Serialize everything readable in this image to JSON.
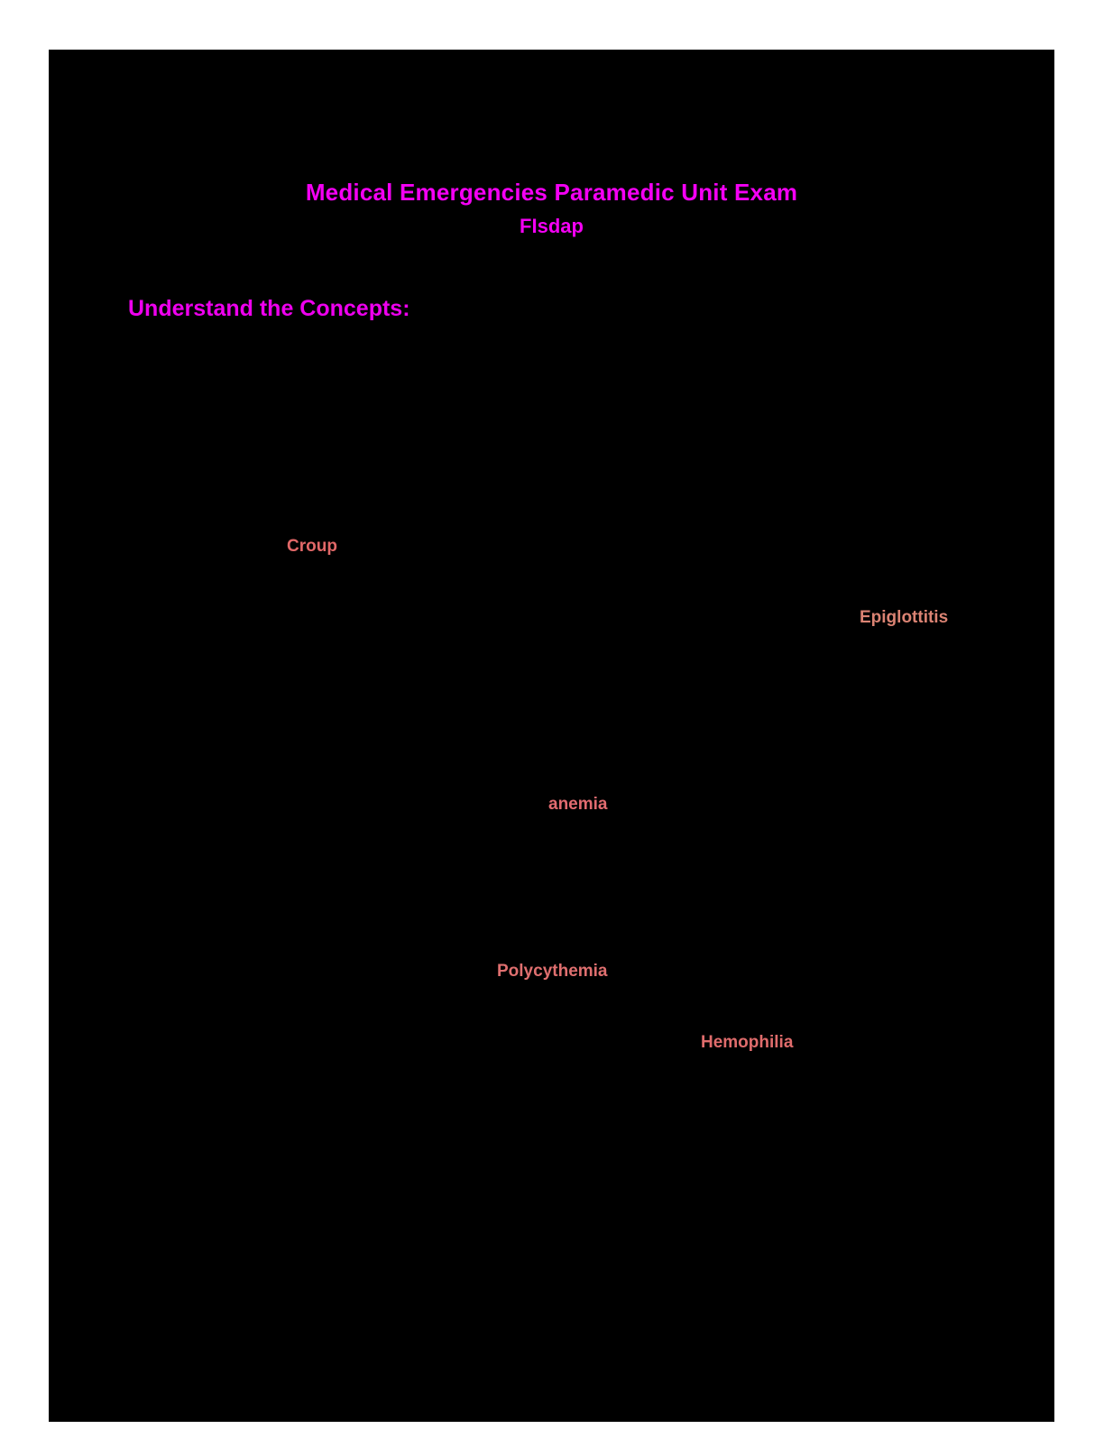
{
  "page": {
    "title": "Medical Emergencies Paramedic Unit Exam",
    "subtitle": "FIsdap",
    "section_heading": "Understand the Concepts:",
    "colors": {
      "canvas_background": "#FFFFFF",
      "page_background": "#000000",
      "title": "#F400F4",
      "subtitle": "#F400F4",
      "section_heading": "#EE00EE"
    },
    "terms": [
      {
        "label": "Croup",
        "color": "#E16868"
      },
      {
        "label": "Epiglottitis",
        "color": "#DB8373"
      },
      {
        "label": "anemia",
        "color": "#E26B70"
      },
      {
        "label": "Polycythemia",
        "color": "#DF6F6F"
      },
      {
        "label": "Hemophilia",
        "color": "#E06C6C"
      }
    ]
  }
}
